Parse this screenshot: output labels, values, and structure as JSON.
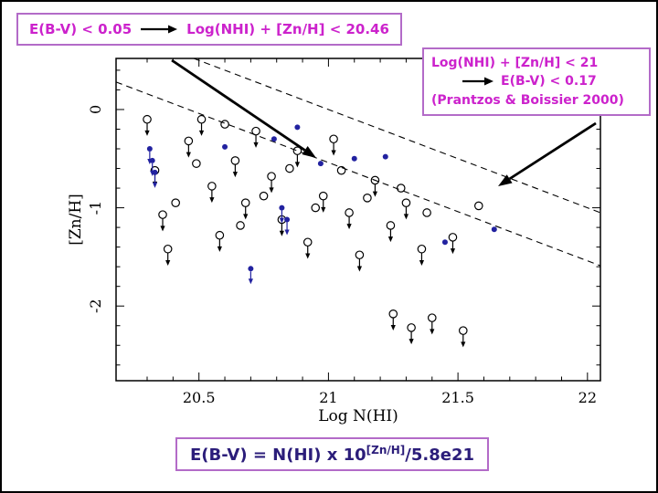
{
  "colors": {
    "annotation_magenta": "#cc22cc",
    "box_border_purple": "#b36bc8",
    "formula_dark_purple": "#2b1d7a",
    "marker_black": "#000000",
    "marker_blue": "#2222a0"
  },
  "annotations": {
    "top_left_box": {
      "left_text": "E(B-V) < 0.05",
      "right_text": "Log(NHI) + [Zn/H] < 20.46"
    },
    "right_box": {
      "line1": "Log(NHI) + [Zn/H] < 21",
      "line2": "E(B-V) < 0.17",
      "line3": "(Prantzos & Boissier 2000)"
    },
    "formula_box": {
      "prefix": "E(B-V) = N(HI) x 10",
      "superscript": "[Zn/H]",
      "suffix": "/5.8e21"
    },
    "arrows": [
      {
        "name": "arrow-to-threshold-2046",
        "from": [
          186,
          64
        ],
        "to": [
          344,
          171
        ]
      },
      {
        "name": "arrow-to-threshold-21",
        "from": [
          650,
          133
        ],
        "to": [
          543,
          202
        ]
      }
    ]
  },
  "chart_data": {
    "type": "scatter",
    "title": "",
    "xlabel": "Log N(HI)",
    "ylabel": "[Zn/H]",
    "xlim": [
      20.18,
      22.05
    ],
    "ylim": [
      -2.76,
      0.52
    ],
    "grid": false,
    "legend": "none",
    "x_ticks": [
      20.5,
      21,
      21.5,
      22
    ],
    "x_tick_labels": [
      "20.5",
      "21",
      "21.5",
      "22"
    ],
    "y_ticks": [
      0,
      -1,
      -2
    ],
    "y_tick_labels": [
      "0",
      "-1",
      "-2"
    ],
    "lines": [
      {
        "name": "threshold-line-20-46",
        "style": "dashed",
        "label": "Log(NHI) + [Zn/H] = 20.46",
        "from": [
          20.18,
          0.28
        ],
        "to": [
          22.05,
          -1.59
        ]
      },
      {
        "name": "threshold-line-21",
        "style": "dashed",
        "label": "Log(NHI) + [Zn/H] = 21",
        "from": [
          20.48,
          0.52
        ],
        "to": [
          22.05,
          -1.05
        ]
      }
    ],
    "series": [
      {
        "name": "upper-limits-open-circles",
        "marker": "circle-down-arrow",
        "color": "#000000",
        "points": [
          [
            20.3,
            -0.1
          ],
          [
            20.33,
            -0.62
          ],
          [
            20.36,
            -1.07
          ],
          [
            20.38,
            -1.42
          ],
          [
            20.46,
            -0.32
          ],
          [
            20.51,
            -0.1
          ],
          [
            20.55,
            -0.78
          ],
          [
            20.58,
            -1.28
          ],
          [
            20.64,
            -0.52
          ],
          [
            20.68,
            -0.95
          ],
          [
            20.72,
            -0.22
          ],
          [
            20.78,
            -0.68
          ],
          [
            20.82,
            -1.12
          ],
          [
            20.88,
            -0.42
          ],
          [
            20.92,
            -1.35
          ],
          [
            20.98,
            -0.88
          ],
          [
            21.02,
            -0.3
          ],
          [
            21.08,
            -1.05
          ],
          [
            21.12,
            -1.48
          ],
          [
            21.18,
            -0.72
          ],
          [
            21.24,
            -1.18
          ],
          [
            21.3,
            -0.95
          ],
          [
            21.36,
            -1.42
          ],
          [
            21.25,
            -2.08
          ],
          [
            21.32,
            -2.22
          ],
          [
            21.4,
            -2.12
          ],
          [
            21.48,
            -1.3
          ],
          [
            21.52,
            -2.25
          ]
        ]
      },
      {
        "name": "detections-open-circles",
        "marker": "circle",
        "color": "#000000",
        "points": [
          [
            20.41,
            -0.95
          ],
          [
            20.49,
            -0.55
          ],
          [
            20.6,
            -0.15
          ],
          [
            20.66,
            -1.18
          ],
          [
            20.75,
            -0.88
          ],
          [
            20.85,
            -0.6
          ],
          [
            20.95,
            -1.0
          ],
          [
            21.05,
            -0.62
          ],
          [
            21.15,
            -0.9
          ],
          [
            21.28,
            -0.8
          ],
          [
            21.38,
            -1.05
          ],
          [
            21.58,
            -0.98
          ]
        ]
      },
      {
        "name": "detections-filled-blue",
        "marker": "dot",
        "color": "#2222a0",
        "points": [
          [
            20.6,
            -0.38
          ],
          [
            20.79,
            -0.3
          ],
          [
            20.88,
            -0.18
          ],
          [
            20.97,
            -0.55
          ],
          [
            21.1,
            -0.5
          ],
          [
            21.22,
            -0.48
          ],
          [
            21.45,
            -1.35
          ],
          [
            21.64,
            -1.22
          ]
        ]
      },
      {
        "name": "upper-limits-blue",
        "marker": "dot-down-arrow",
        "color": "#2222a0",
        "points": [
          [
            20.31,
            -0.4
          ],
          [
            20.32,
            -0.52
          ],
          [
            20.33,
            -0.64
          ],
          [
            20.7,
            -1.62
          ],
          [
            20.82,
            -1.0
          ],
          [
            20.84,
            -1.12
          ]
        ]
      }
    ]
  }
}
